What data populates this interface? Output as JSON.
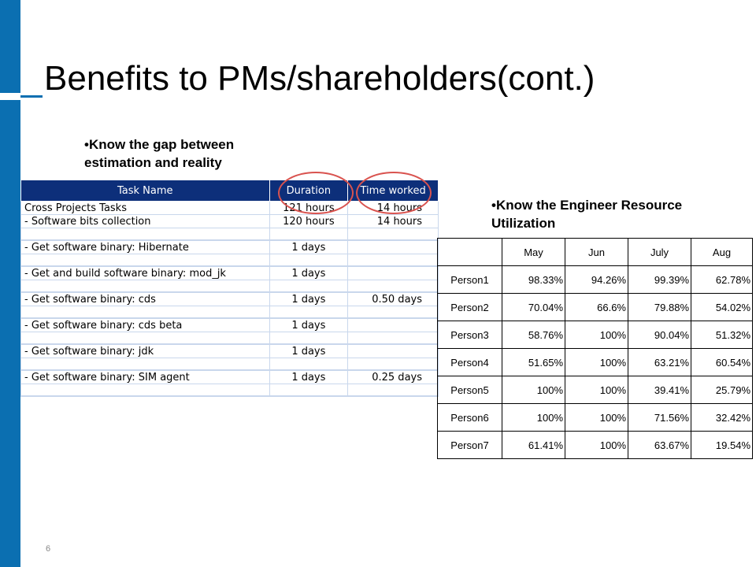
{
  "slide": {
    "title": "Benefits to PMs/shareholders(cont.)",
    "page_number": "6"
  },
  "bullets": {
    "gap": "•Know the gap between estimation and reality",
    "utilization": "•Know the Engineer Resource Utilization"
  },
  "task_table": {
    "headers": [
      "Task Name",
      "Duration",
      "Time worked"
    ],
    "rows": [
      [
        "Cross Projects Tasks",
        "121 hours",
        "14 hours"
      ],
      [
        "- Software bits collection",
        "120 hours",
        "14 hours"
      ],
      [
        "- Get software binary: Hibernate",
        "1 days",
        ""
      ],
      [
        "- Get and build software binary: mod_jk",
        "1 days",
        ""
      ],
      [
        "- Get software binary: cds",
        "1 days",
        "0.50 days"
      ],
      [
        "- Get software binary: cds beta",
        "1 days",
        ""
      ],
      [
        "- Get software binary: jdk",
        "1 days",
        ""
      ],
      [
        "- Get software binary: SIM agent",
        "1 days",
        "0.25 days"
      ]
    ]
  },
  "util_table": {
    "headers": [
      "",
      "May",
      "Jun",
      "July",
      "Aug"
    ],
    "rows": [
      [
        "Person1",
        "98.33%",
        "94.26%",
        "99.39%",
        "62.78%"
      ],
      [
        "Person2",
        "70.04%",
        "66.6%",
        "79.88%",
        "54.02%"
      ],
      [
        "Person3",
        "58.76%",
        "100%",
        "90.04%",
        "51.32%"
      ],
      [
        "Person4",
        "51.65%",
        "100%",
        "63.21%",
        "60.54%"
      ],
      [
        "Person5",
        "100%",
        "100%",
        "39.41%",
        "25.79%"
      ],
      [
        "Person6",
        "100%",
        "100%",
        "71.56%",
        "32.42%"
      ],
      [
        "Person7",
        "61.41%",
        "100%",
        "63.67%",
        "19.54%"
      ]
    ]
  },
  "colors": {
    "accent": "#0b6fb1",
    "table_header": "#0d2f7a",
    "highlight_circle": "#d9534f"
  }
}
